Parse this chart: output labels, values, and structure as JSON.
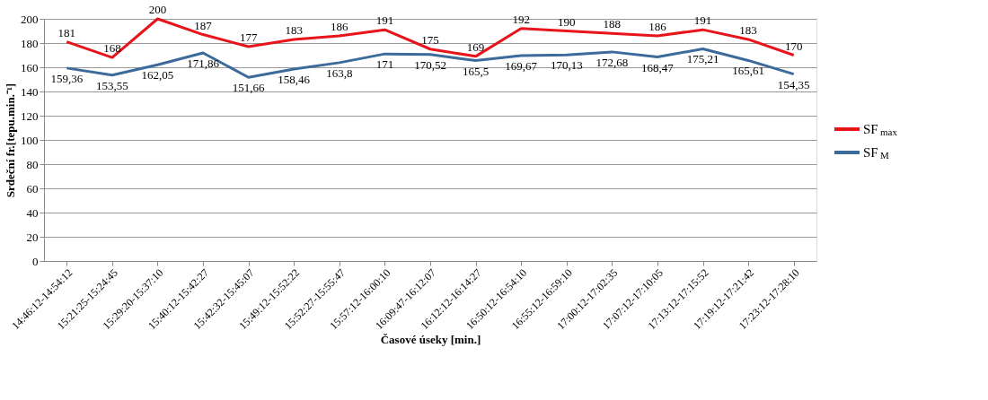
{
  "chart_data": {
    "type": "line",
    "xlabel": "Časové úseky [min.]",
    "ylabel": "Srdeční fr.[tepu.min.⁻¹]",
    "categories": [
      "14:46:12-14:54:12",
      "15:21:25-15:24:45",
      "15:29:20-15:37:10",
      "15:40:12-15:42:27",
      "15:42:32-15:45:07",
      "15:49:12-15:52:22",
      "15:52:27-15:55:47",
      "15:57:12-16:00:10",
      "16:09:47-16:12:07",
      "16:12:12-16:14:27",
      "16:50:12-16:54:10",
      "16:55:12-16:59:10",
      "17:00:12-17:02:35",
      "17:07:12-17:10:05",
      "17:13:12-17:15:52",
      "17:19:12-17:21:42",
      "17:23:12-17:28:10"
    ],
    "series": [
      {
        "name": "SF$_{max}$",
        "color": "#e8141c",
        "values": [
          181,
          168,
          200,
          187,
          177,
          183,
          186,
          191,
          175,
          169,
          192,
          190,
          188,
          186,
          191,
          183,
          170
        ],
        "value_labels": [
          "181",
          "168",
          "200",
          "187",
          "177",
          "183",
          "186",
          "191",
          "175",
          "169",
          "192",
          "190",
          "188",
          "186",
          "191",
          "183",
          "170"
        ]
      },
      {
        "name": "SF$_{M}$",
        "color": "#3c6a9a",
        "values": [
          159.36,
          153.55,
          162.05,
          171.86,
          151.66,
          158.46,
          163.8,
          171,
          170.52,
          165.5,
          169.67,
          170.13,
          172.68,
          168.47,
          175.21,
          165.61,
          154.35
        ],
        "value_labels": [
          "159,36",
          "153,55",
          "162,05",
          "171,86",
          "151,66",
          "158,46",
          "163,8",
          "171",
          "170,52",
          "165,5",
          "169,67",
          "170,13",
          "172,68",
          "168,47",
          "175,21",
          "165,61",
          "154,35"
        ]
      }
    ],
    "ylim": [
      0,
      200
    ],
    "yticks": [
      0,
      20,
      40,
      60,
      80,
      100,
      120,
      140,
      160,
      180,
      200
    ],
    "grid": "y",
    "legend": "right",
    "marker": "none",
    "line_style": "solid"
  }
}
